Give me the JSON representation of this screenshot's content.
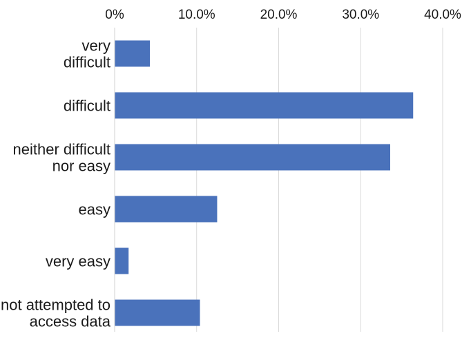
{
  "chart_data": {
    "type": "bar",
    "orientation": "horizontal",
    "title": "",
    "xlabel": "",
    "ylabel": "",
    "xlim": [
      0,
      40
    ],
    "x_axis_position": "top",
    "grid": true,
    "legend": "none",
    "tick_values": [
      0,
      10,
      20,
      30,
      40
    ],
    "tick_labels": [
      "0%",
      "10.0%",
      "20.0%",
      "30.0%",
      "40.0%"
    ],
    "categories": [
      [
        "very",
        "difficult"
      ],
      [
        "difficult"
      ],
      [
        "neither difficult",
        "nor easy"
      ],
      [
        "easy"
      ],
      [
        "very easy"
      ],
      [
        "not attempted to",
        "access data"
      ]
    ],
    "values": [
      4.3,
      36.4,
      33.6,
      12.5,
      1.7,
      10.4
    ],
    "bar_color": "#4a72bb",
    "grid_color": "#d9d9d9",
    "axis_color": "#d0d0d0"
  }
}
